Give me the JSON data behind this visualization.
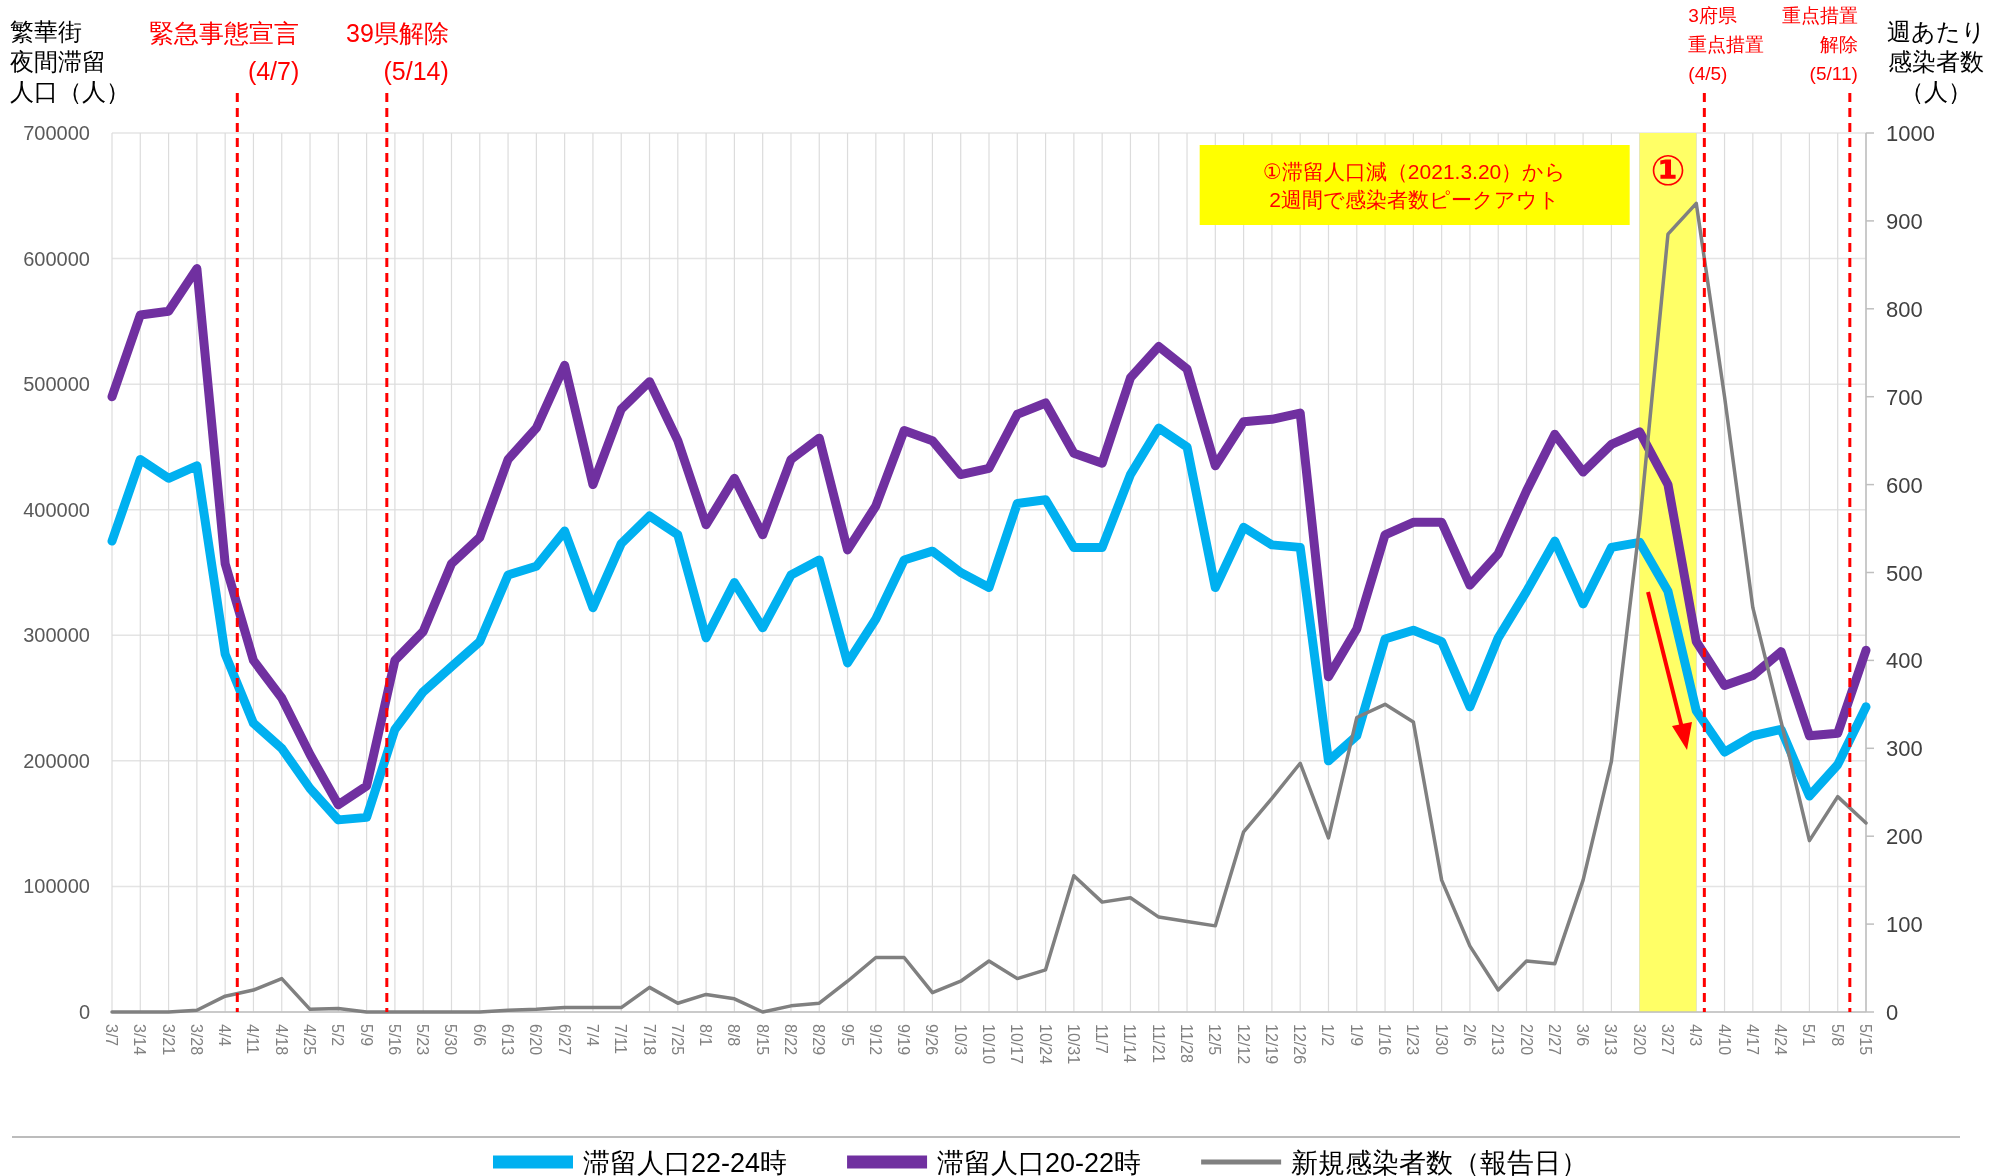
{
  "chart_data": {
    "type": "line",
    "x": [
      "2020-03-07",
      "2020-03-14",
      "2020-03-21",
      "2020-03-28",
      "2020-04-04",
      "2020-04-11",
      "2020-04-18",
      "2020-04-25",
      "2020-05-02",
      "2020-05-09",
      "2020-05-16",
      "2020-05-23",
      "2020-05-30",
      "2020-06-06",
      "2020-06-13",
      "2020-06-20",
      "2020-06-27",
      "2020-07-04",
      "2020-07-11",
      "2020-07-18",
      "2020-07-25",
      "2020-08-01",
      "2020-08-08",
      "2020-08-15",
      "2020-08-22",
      "2020-08-29",
      "2020-09-05",
      "2020-09-12",
      "2020-09-19",
      "2020-09-26",
      "2020-10-03",
      "2020-10-10",
      "2020-10-17",
      "2020-10-24",
      "2020-10-31",
      "2020-11-07",
      "2020-11-14",
      "2020-11-21",
      "2020-11-28",
      "2020-12-05",
      "2020-12-12",
      "2020-12-19",
      "2020-12-26",
      "2021-01-02",
      "2021-01-09",
      "2021-01-16",
      "2021-01-23",
      "2021-01-30",
      "2021-02-06",
      "2021-02-13",
      "2021-02-20",
      "2021-02-27",
      "2021-03-06",
      "2021-03-13",
      "2021-03-20",
      "2021-03-27",
      "2021-04-03",
      "2021-04-10",
      "2021-04-17",
      "2021-04-24",
      "2021-05-01",
      "2021-05-08",
      "2021-05-15"
    ],
    "series": [
      {
        "name": "滞留人口22-24時",
        "color": "#00b0f0",
        "values": [
          375000,
          440000,
          425000,
          435000,
          285000,
          230000,
          210000,
          178000,
          153000,
          155000,
          225000,
          255000,
          275000,
          295000,
          348000,
          355000,
          383000,
          322000,
          373000,
          395000,
          380000,
          298000,
          342000,
          306000,
          348000,
          360000,
          278000,
          313000,
          360000,
          367000,
          350000,
          338000,
          405000,
          408000,
          370000,
          370000,
          428000,
          465000,
          450000,
          338000,
          386000,
          372000,
          370000,
          200000,
          220000,
          297000,
          304000,
          295000,
          243000,
          298000,
          335000,
          375000,
          325000,
          370000,
          374000,
          335000,
          240000,
          207000,
          220000,
          225000,
          172000,
          197000,
          243000
        ]
      },
      {
        "name": "滞留人口20-22時",
        "color": "#7030a0",
        "values": [
          490000,
          555000,
          558000,
          592000,
          357000,
          280000,
          250000,
          205000,
          165000,
          180000,
          280000,
          303000,
          357000,
          378000,
          440000,
          465000,
          515000,
          420000,
          480000,
          502000,
          455000,
          388000,
          425000,
          380000,
          440000,
          457000,
          368000,
          403000,
          463000,
          455000,
          428000,
          433000,
          476000,
          485000,
          445000,
          437000,
          505000,
          530000,
          512000,
          435000,
          470000,
          472000,
          477000,
          267000,
          305000,
          380000,
          390000,
          390000,
          340000,
          365000,
          415000,
          460000,
          430000,
          452000,
          462000,
          420000,
          295000,
          260000,
          268000,
          287000,
          220000,
          222000,
          288000
        ]
      },
      {
        "name": "新規感染者数（報告日）",
        "color": "#808080",
        "axis": "y2",
        "values": [
          0,
          0,
          0,
          2,
          18,
          25,
          38,
          3,
          4,
          0,
          0,
          0,
          0,
          0,
          2,
          3,
          5,
          5,
          5,
          28,
          10,
          20,
          15,
          0,
          7,
          10,
          35,
          62,
          62,
          22,
          35,
          58,
          38,
          48,
          155,
          125,
          130,
          108,
          103,
          98,
          205,
          243,
          283,
          198,
          335,
          350,
          330,
          150,
          75,
          25,
          58,
          55,
          150,
          285,
          555,
          885,
          920,
          700,
          460,
          330,
          195,
          245,
          215
        ]
      }
    ],
    "xlim": [
      "2020-03-07",
      "2021-05-15"
    ],
    "xticks": [
      {
        "value": "2020-03-07",
        "label": "3/7"
      },
      {
        "value": "2020-03-14",
        "label": "3/14"
      },
      {
        "value": "2020-03-21",
        "label": "3/21"
      },
      {
        "value": "2020-03-28",
        "label": "3/28"
      },
      {
        "value": "2020-04-04",
        "label": "4/4"
      },
      {
        "value": "2020-04-11",
        "label": "4/11"
      },
      {
        "value": "2020-04-18",
        "label": "4/18"
      },
      {
        "value": "2020-04-25",
        "label": "4/25"
      },
      {
        "value": "2020-05-02",
        "label": "5/2"
      },
      {
        "value": "2020-05-09",
        "label": "5/9"
      },
      {
        "value": "2020-05-16",
        "label": "5/16"
      },
      {
        "value": "2020-05-23",
        "label": "5/23"
      },
      {
        "value": "2020-05-30",
        "label": "5/30"
      },
      {
        "value": "2020-06-06",
        "label": "6/6"
      },
      {
        "value": "2020-06-13",
        "label": "6/13"
      },
      {
        "value": "2020-06-20",
        "label": "6/20"
      },
      {
        "value": "2020-06-27",
        "label": "6/27"
      },
      {
        "value": "2020-07-04",
        "label": "7/4"
      },
      {
        "value": "2020-07-11",
        "label": "7/11"
      },
      {
        "value": "2020-07-18",
        "label": "7/18"
      },
      {
        "value": "2020-07-25",
        "label": "7/25"
      },
      {
        "value": "2020-08-01",
        "label": "8/1"
      },
      {
        "value": "2020-08-08",
        "label": "8/8"
      },
      {
        "value": "2020-08-15",
        "label": "8/15"
      },
      {
        "value": "2020-08-22",
        "label": "8/22"
      },
      {
        "value": "2020-08-29",
        "label": "8/29"
      },
      {
        "value": "2020-09-05",
        "label": "9/5"
      },
      {
        "value": "2020-09-12",
        "label": "9/12"
      },
      {
        "value": "2020-09-19",
        "label": "9/19"
      },
      {
        "value": "2020-09-26",
        "label": "9/26"
      },
      {
        "value": "2020-10-03",
        "label": "10/3"
      },
      {
        "value": "2020-10-10",
        "label": "10/10"
      },
      {
        "value": "2020-10-17",
        "label": "10/17"
      },
      {
        "value": "2020-10-24",
        "label": "10/24"
      },
      {
        "value": "2020-10-31",
        "label": "10/31"
      },
      {
        "value": "2020-11-07",
        "label": "11/7"
      },
      {
        "value": "2020-11-14",
        "label": "11/14"
      },
      {
        "value": "2020-11-21",
        "label": "11/21"
      },
      {
        "value": "2020-11-28",
        "label": "11/28"
      },
      {
        "value": "2020-12-05",
        "label": "12/5"
      },
      {
        "value": "2020-12-12",
        "label": "12/12"
      },
      {
        "value": "2020-12-19",
        "label": "12/19"
      },
      {
        "value": "2020-12-26",
        "label": "12/26"
      },
      {
        "value": "2021-01-02",
        "label": "1/2"
      },
      {
        "value": "2021-01-09",
        "label": "1/9"
      },
      {
        "value": "2021-01-16",
        "label": "1/16"
      },
      {
        "value": "2021-01-23",
        "label": "1/23"
      },
      {
        "value": "2021-01-30",
        "label": "1/30"
      },
      {
        "value": "2021-02-06",
        "label": "2/6"
      },
      {
        "value": "2021-02-13",
        "label": "2/13"
      },
      {
        "value": "2021-02-20",
        "label": "2/20"
      },
      {
        "value": "2021-02-27",
        "label": "2/27"
      },
      {
        "value": "2021-03-06",
        "label": "3/6"
      },
      {
        "value": "2021-03-13",
        "label": "3/13"
      },
      {
        "value": "2021-03-20",
        "label": "3/20"
      },
      {
        "value": "2021-03-27",
        "label": "3/27"
      },
      {
        "value": "2021-04-03",
        "label": "4/3"
      },
      {
        "value": "2021-04-10",
        "label": "4/10"
      },
      {
        "value": "2021-04-17",
        "label": "4/17"
      },
      {
        "value": "2021-04-24",
        "label": "4/24"
      },
      {
        "value": "2021-05-01",
        "label": "5/1"
      },
      {
        "value": "2021-05-08",
        "label": "5/8"
      },
      {
        "value": "2021-05-15",
        "label": "5/15"
      }
    ],
    "ylim": [
      0,
      700000
    ],
    "yticks": [
      0,
      100000,
      200000,
      300000,
      400000,
      500000,
      600000,
      700000
    ],
    "y2lim": [
      0,
      1000
    ],
    "y2ticks": [
      0,
      100,
      200,
      300,
      400,
      500,
      600,
      700,
      800,
      900,
      1000
    ],
    "ylabel": "繁華街夜間滞留人口（人）",
    "y2label": "週あたり感染者数（人）",
    "ref_lines": [
      {
        "axis": "x",
        "value": "2020-04-07",
        "label": "緊急事態宣言\n(4/7)",
        "color": "#ff0000",
        "line_style": "dashed"
      },
      {
        "axis": "x",
        "value": "2020-05-14",
        "label": "39県解除\n(5/14)",
        "color": "#ff0000",
        "line_style": "dashed"
      },
      {
        "axis": "x",
        "value": "2021-04-05",
        "label": "3府県重点措置\n(4/5)",
        "color": "#ff0000",
        "line_style": "dashed"
      },
      {
        "axis": "x",
        "value": "2021-05-11",
        "label": "重点措置解除\n(5/11)",
        "color": "#ff0000",
        "line_style": "dashed"
      }
    ],
    "bands": [
      {
        "axis": "x",
        "from": "2021-03-20",
        "to": "2021-04-03",
        "label": "①",
        "color": "#ffff66"
      }
    ],
    "annotations": [
      "①滞留人口減（2021.3.20）から\n2週間で感染者数ピークアウト"
    ],
    "grid": true,
    "legend": "bottom"
  }
}
